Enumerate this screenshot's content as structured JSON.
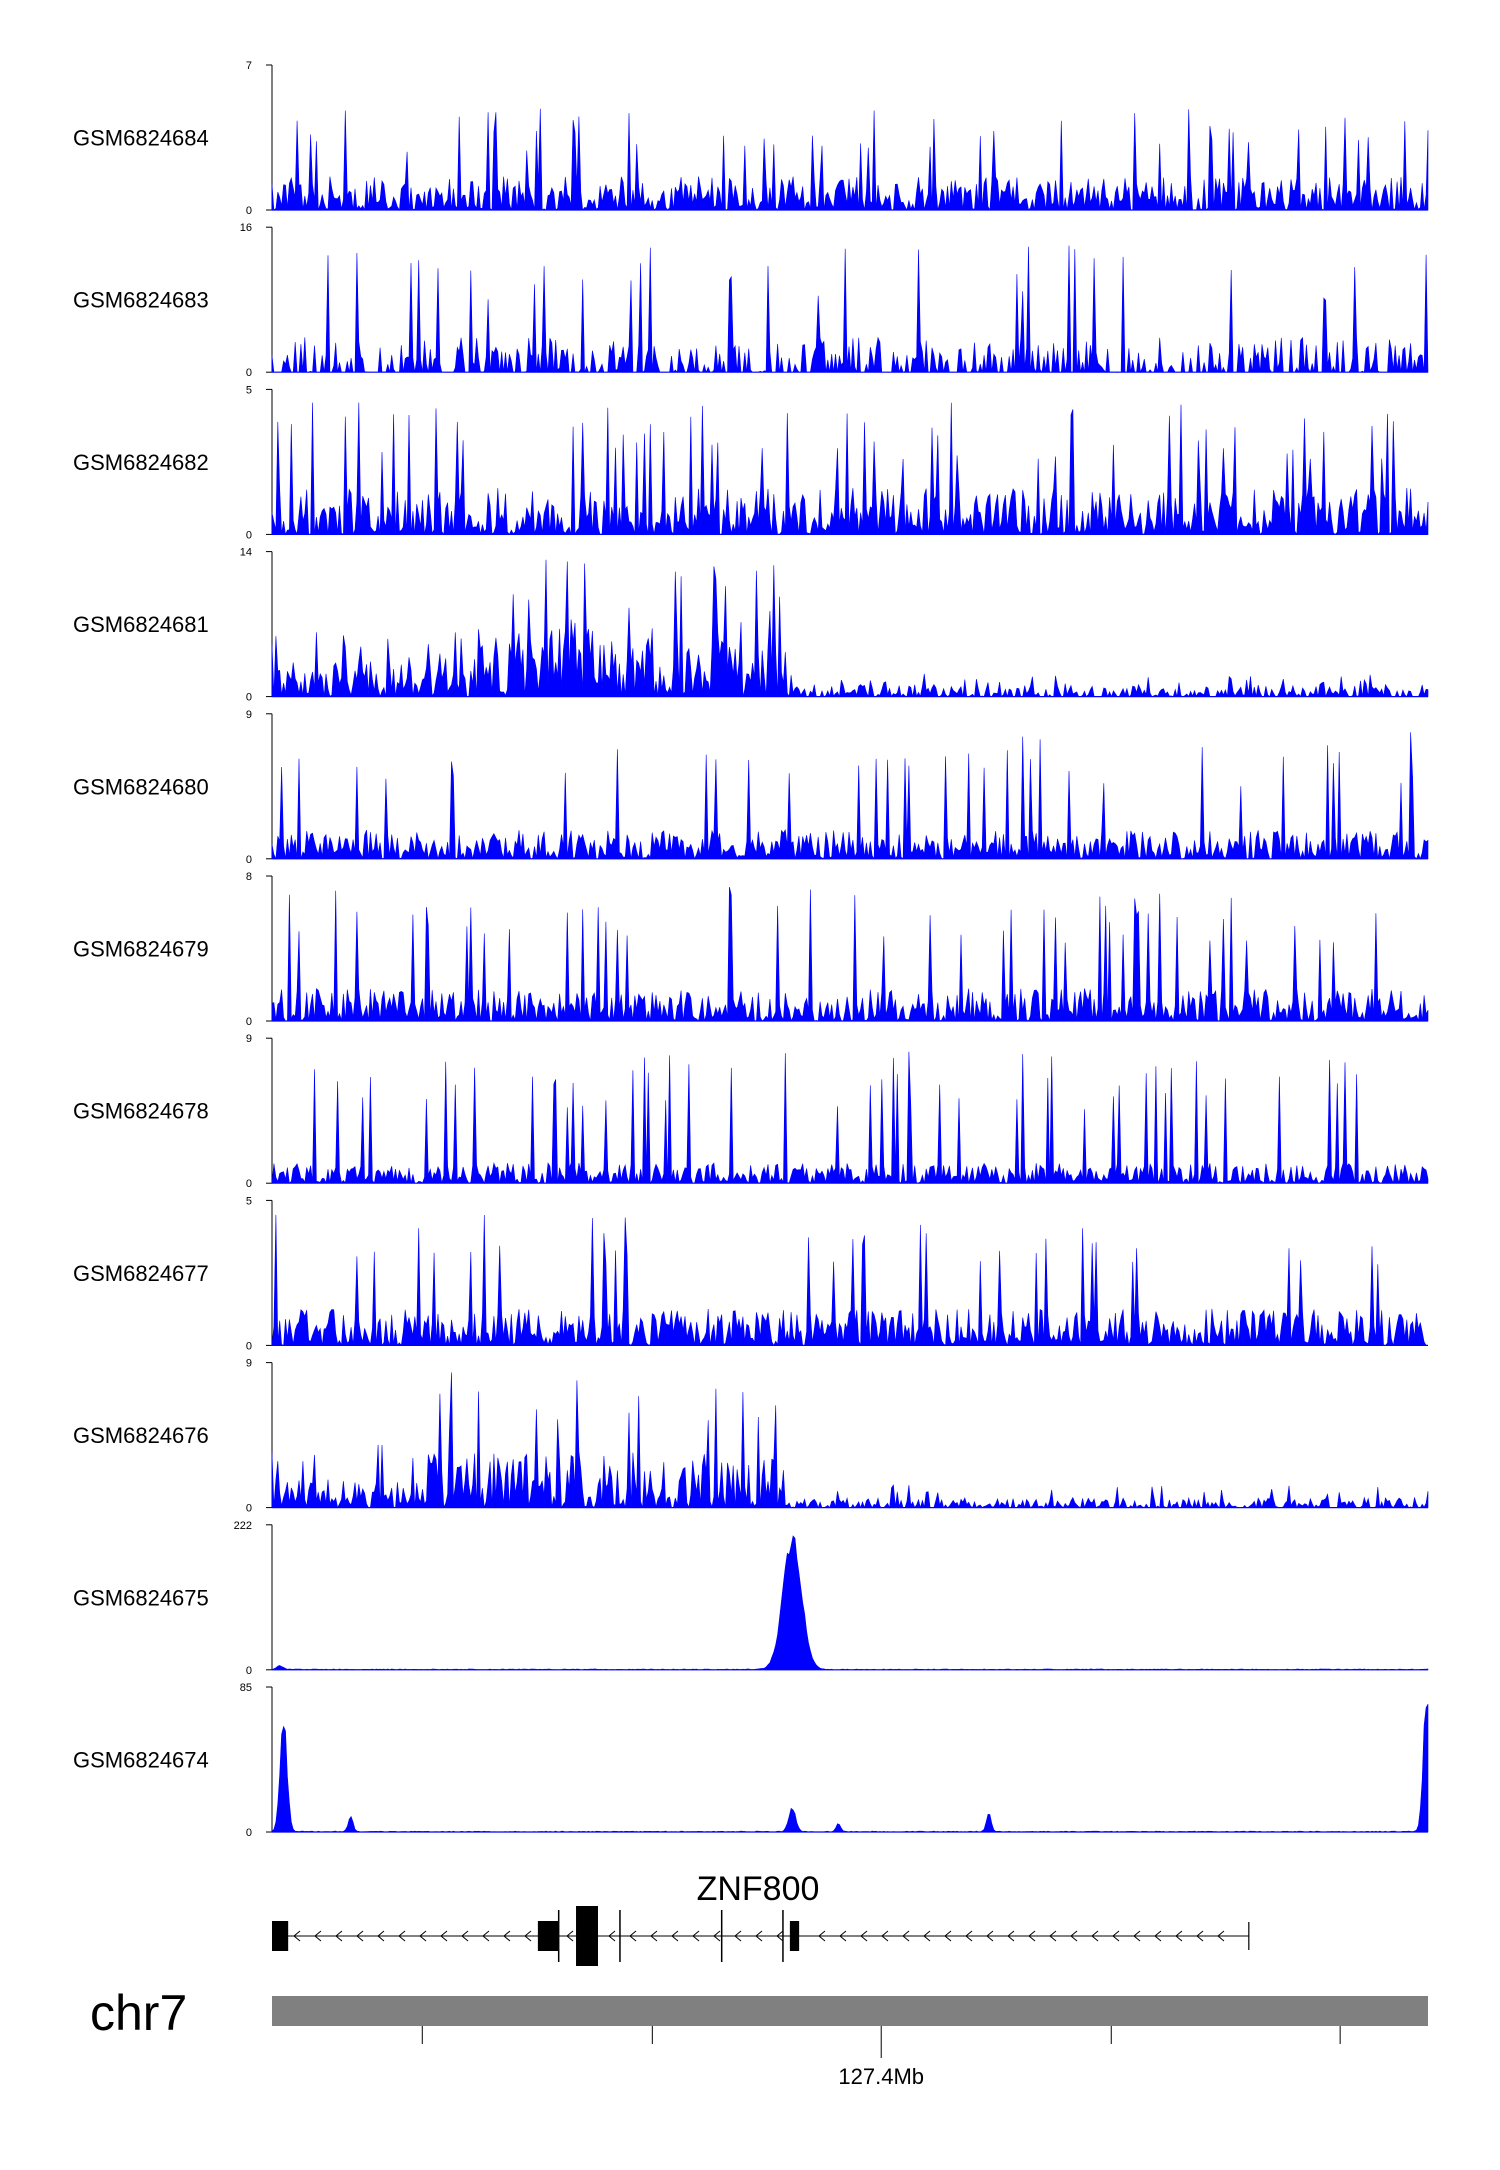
{
  "colors": {
    "signal": "#0000ff",
    "axis": "#000000",
    "exon": "#000000",
    "ideogram": "#808080"
  },
  "chart_data": {
    "type": "area",
    "tracks": [
      {
        "name": "GSM6824684",
        "ymax": "7",
        "ymin": "0",
        "max": 7,
        "pattern": "uniform",
        "base": 1.8,
        "spike": 5.0,
        "level": 0.9
      },
      {
        "name": "GSM6824683",
        "ymax": "16",
        "ymin": "0",
        "max": 16,
        "pattern": "sparse",
        "base": 5.5,
        "spike": 14.0,
        "level": 0.7
      },
      {
        "name": "GSM6824682",
        "ymax": "5",
        "ymin": "0",
        "max": 5,
        "pattern": "uniform",
        "base": 1.6,
        "spike": 4.6,
        "level": 1.0
      },
      {
        "name": "GSM6824681",
        "ymax": "14",
        "ymin": "0",
        "max": 14,
        "pattern": "left",
        "base": 6.0,
        "spike": 13.5,
        "level": 1.2
      },
      {
        "name": "GSM6824680",
        "ymax": "9",
        "ymin": "0",
        "max": 9,
        "pattern": "uniform",
        "base": 2.0,
        "spike": 8.0,
        "level": 0.9
      },
      {
        "name": "GSM6824679",
        "ymax": "8",
        "ymin": "0",
        "max": 8,
        "pattern": "uniform",
        "base": 2.0,
        "spike": 7.5,
        "level": 0.9
      },
      {
        "name": "GSM6824678",
        "ymax": "9",
        "ymin": "0",
        "max": 9,
        "pattern": "uniform",
        "base": 1.8,
        "spike": 8.2,
        "level": 0.7
      },
      {
        "name": "GSM6824677",
        "ymax": "5",
        "ymin": "0",
        "max": 5,
        "pattern": "uniform",
        "base": 1.4,
        "spike": 4.7,
        "level": 0.9
      },
      {
        "name": "GSM6824676",
        "ymax": "9",
        "ymin": "0",
        "max": 9,
        "pattern": "left",
        "base": 3.5,
        "spike": 8.8,
        "level": 1.0
      },
      {
        "name": "GSM6824675",
        "ymax": "222",
        "ymin": "0",
        "max": 222,
        "pattern": "peaks",
        "peaks": [
          [
            0.007,
            6,
            0.003
          ],
          [
            0.45,
            215,
            0.008
          ]
        ]
      },
      {
        "name": "GSM6824674",
        "ymax": "85",
        "ymin": "0",
        "max": 85,
        "pattern": "peaks",
        "peaks": [
          [
            0.01,
            70,
            0.003
          ],
          [
            0.068,
            10,
            0.002
          ],
          [
            0.45,
            15,
            0.003
          ],
          [
            0.49,
            5,
            0.002
          ],
          [
            0.62,
            12,
            0.002
          ],
          [
            0.999,
            85,
            0.003
          ]
        ]
      }
    ],
    "gene": {
      "name": "ZNF800",
      "strand": "-",
      "start_frac": 0.0,
      "end_frac": 0.845,
      "exons": [
        [
          0.0,
          0.014
        ],
        [
          0.23,
          0.248
        ],
        [
          0.263,
          0.282
        ],
        [
          0.448,
          0.456
        ]
      ],
      "marks": [
        0.248,
        0.301,
        0.389,
        0.442
      ]
    },
    "chromosome": "chr7",
    "position_ticks": [
      {
        "frac": 0.13,
        "label": ""
      },
      {
        "frac": 0.329,
        "label": ""
      },
      {
        "frac": 0.527,
        "label": "127.4Mb"
      },
      {
        "frac": 0.726,
        "label": ""
      },
      {
        "frac": 0.924,
        "label": ""
      }
    ]
  }
}
